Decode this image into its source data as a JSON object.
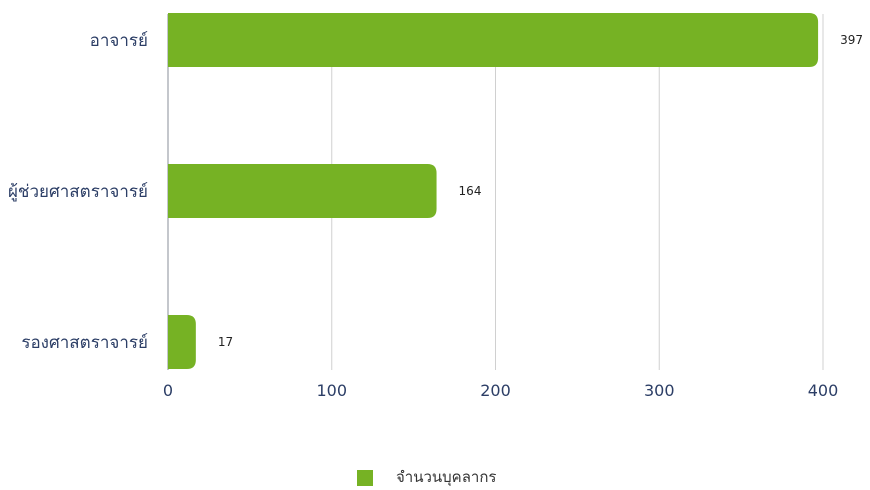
{
  "chart_data": {
    "type": "bar",
    "orientation": "horizontal",
    "categories": [
      "อาจารย์",
      "ผู้ช่วยศาสตราจารย์",
      "รองศาสตราจารย์"
    ],
    "series": [
      {
        "name": "จำนวนบุคลากร",
        "values": [
          397,
          164,
          17
        ],
        "color": "#76b224"
      }
    ],
    "xlim": [
      0,
      400
    ],
    "xticks": [
      0,
      100,
      200,
      300,
      400
    ],
    "grid": true,
    "legend_position": "bottom",
    "data_labels": true
  }
}
